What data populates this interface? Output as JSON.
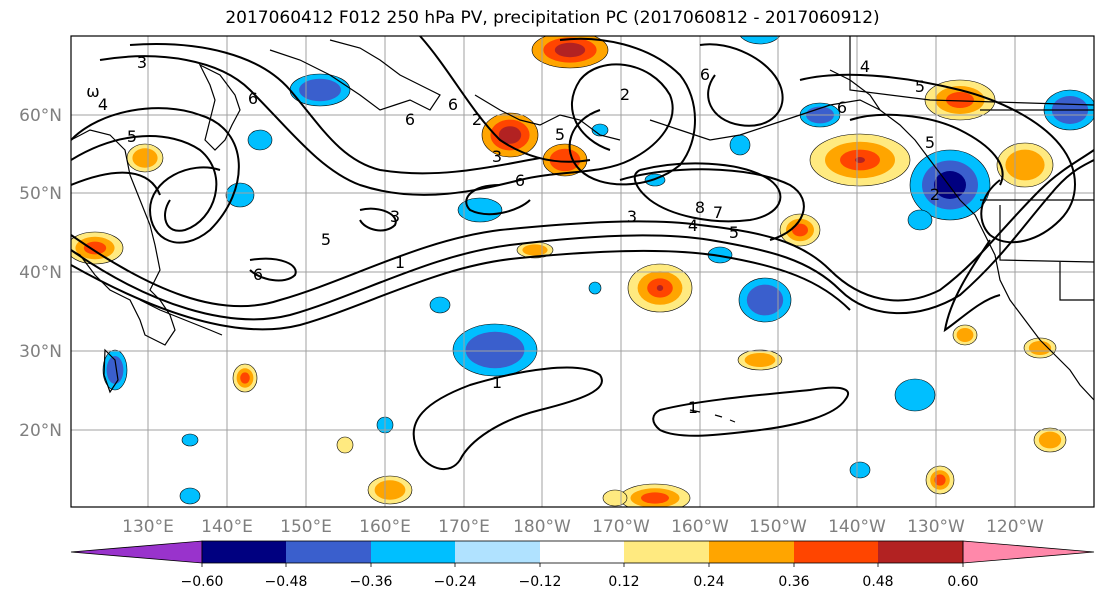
{
  "title": "2017060412 F012 250 hPa PV, precipitation PC (2017060812 - 2017060912)",
  "lat_labels": [
    "60°N",
    "50°N",
    "40°N",
    "30°N",
    "20°N"
  ],
  "lon_labels": [
    "130°E",
    "140°E",
    "150°E",
    "160°E",
    "170°E",
    "180°W",
    "170°W",
    "160°W",
    "150°W",
    "140°W",
    "130°W",
    "120°W"
  ],
  "colorbar": {
    "tick_labels": [
      "−0.60",
      "−0.48",
      "−0.36",
      "−0.24",
      "−0.12",
      "0.12",
      "0.24",
      "0.36",
      "0.48",
      "0.60"
    ],
    "colors": [
      "#9933cc",
      "#000080",
      "#3a5fcd",
      "#00bfff",
      "#b0e2ff",
      "#ffffff",
      "#ffea80",
      "#ffa500",
      "#ff4500",
      "#b22222",
      "#ff88aa"
    ]
  },
  "contour_labels": [
    "3",
    "4",
    "ω",
    "5",
    "6",
    "6",
    "5",
    "1",
    "2",
    "3",
    "6",
    "6",
    "3",
    "6",
    "6",
    "5",
    "4",
    "5",
    "6",
    "2",
    "8",
    "7",
    "4",
    "5",
    "5",
    "3",
    "1",
    "1",
    "2"
  ]
}
